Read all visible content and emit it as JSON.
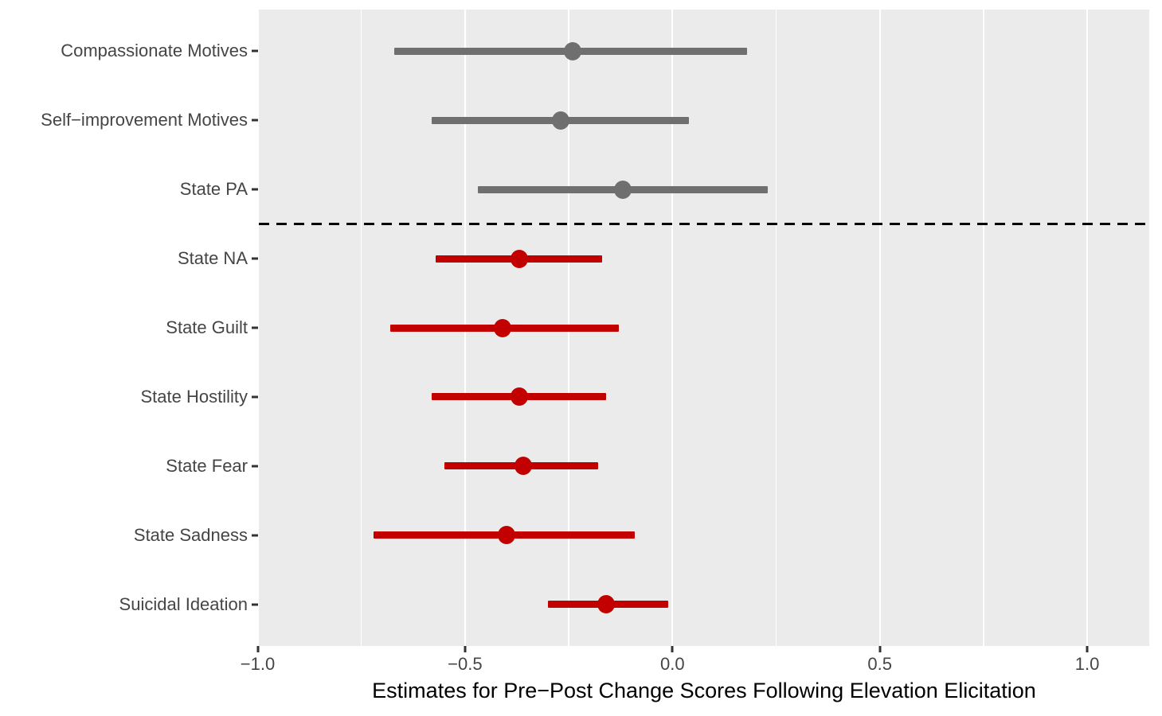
{
  "chart_data": {
    "type": "forest",
    "title": "",
    "xlabel": "Estimates for Pre−Post Change Scores Following Elevation Elicitation",
    "x_axis": {
      "major_ticks": [
        -1.0,
        -0.5,
        0.0,
        0.5,
        1.0
      ],
      "major_tick_labels": [
        "−1.0",
        "−0.5",
        "0.0",
        "0.5",
        "1.0"
      ],
      "minor_ticks": [
        -0.75,
        -0.25,
        0.25,
        0.75
      ],
      "range_shown": [
        -1.0,
        1.15
      ],
      "grid": true
    },
    "legend": null,
    "separator": {
      "style": "dashed",
      "after_category": "State PA"
    },
    "colors": {
      "reference_group": "#6F6F6F",
      "highlight_group": "#C20000",
      "panel_background": "#EBEBEB",
      "gridline": "#FFFFFF",
      "separator_line": "#000000",
      "axis_text": "#454545",
      "axis_title": "#000000"
    },
    "rows": [
      {
        "label": "Compassionate Motives",
        "estimate": -0.24,
        "ci_low": -0.67,
        "ci_high": 0.18,
        "group": "reference"
      },
      {
        "label": "Self−improvement Motives",
        "estimate": -0.27,
        "ci_low": -0.58,
        "ci_high": 0.04,
        "group": "reference"
      },
      {
        "label": "State PA",
        "estimate": -0.12,
        "ci_low": -0.47,
        "ci_high": 0.23,
        "group": "reference"
      },
      {
        "label": "State NA",
        "estimate": -0.37,
        "ci_low": -0.57,
        "ci_high": -0.17,
        "group": "highlight"
      },
      {
        "label": "State Guilt",
        "estimate": -0.41,
        "ci_low": -0.68,
        "ci_high": -0.13,
        "group": "highlight"
      },
      {
        "label": "State Hostility",
        "estimate": -0.37,
        "ci_low": -0.58,
        "ci_high": -0.16,
        "group": "highlight"
      },
      {
        "label": "State Fear",
        "estimate": -0.36,
        "ci_low": -0.55,
        "ci_high": -0.18,
        "group": "highlight"
      },
      {
        "label": "State Sadness",
        "estimate": -0.4,
        "ci_low": -0.72,
        "ci_high": -0.09,
        "group": "highlight"
      },
      {
        "label": "Suicidal Ideation",
        "estimate": -0.16,
        "ci_low": -0.3,
        "ci_high": -0.01,
        "group": "highlight"
      }
    ]
  }
}
